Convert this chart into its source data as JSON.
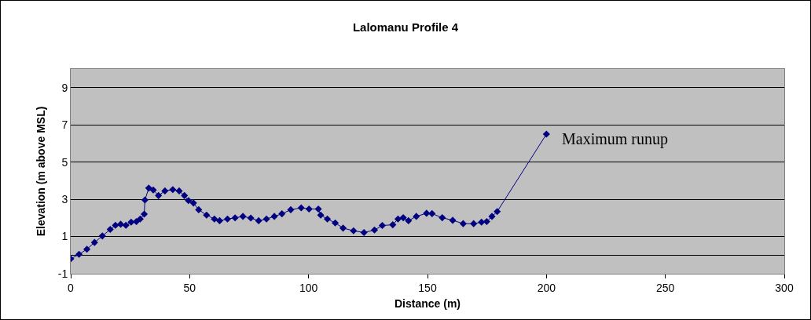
{
  "chart_data": {
    "type": "line",
    "title": "Lalomanu Profile 4",
    "xlabel": "Distance (m)",
    "ylabel": "Elevation (m above MSL)",
    "annotations": [
      {
        "text": "Maximum runup",
        "x": 200,
        "y": 6.5
      }
    ],
    "xlim": [
      0,
      300
    ],
    "xticks": [
      0,
      50,
      100,
      150,
      200,
      250,
      300
    ],
    "ylim": [
      -1,
      10
    ],
    "yticks": [
      -1,
      1,
      3,
      5,
      7,
      9
    ],
    "grid": "y",
    "marker": "diamond",
    "line_style": "solid",
    "series": [
      {
        "color": "#000080",
        "x": [
          0,
          3.5,
          6.8,
          10,
          13.3,
          16.6,
          18.8,
          21,
          23.2,
          25.4,
          27.6,
          29.2,
          30.9,
          31.2,
          32.8,
          34.7,
          36.9,
          39.6,
          42.9,
          45.6,
          47.8,
          49.5,
          51.6,
          53.8,
          57.1,
          60.4,
          62.6,
          65.9,
          69.1,
          72.4,
          75.7,
          79,
          82.3,
          85.6,
          88.8,
          92.5,
          96.9,
          100.2,
          104.1,
          105.1,
          107.9,
          111.2,
          114.5,
          118.9,
          123.3,
          127.7,
          131,
          135.4,
          137.6,
          139.8,
          142,
          145.3,
          149.6,
          151.9,
          156.2,
          160.6,
          165,
          169.4,
          172.7,
          174.9,
          177.1,
          179.3,
          200
        ],
        "values": [
          -0.2,
          0.04,
          0.32,
          0.68,
          1.03,
          1.38,
          1.6,
          1.66,
          1.6,
          1.77,
          1.8,
          1.94,
          2.2,
          2.96,
          3.6,
          3.5,
          3.2,
          3.45,
          3.52,
          3.45,
          3.2,
          2.93,
          2.8,
          2.44,
          2.15,
          1.94,
          1.85,
          1.94,
          2.0,
          2.08,
          1.99,
          1.85,
          1.94,
          2.08,
          2.22,
          2.44,
          2.54,
          2.48,
          2.48,
          2.15,
          1.94,
          1.73,
          1.45,
          1.31,
          1.21,
          1.35,
          1.59,
          1.63,
          1.94,
          2.01,
          1.85,
          2.08,
          2.25,
          2.23,
          2.01,
          1.87,
          1.69,
          1.69,
          1.77,
          1.8,
          2.08,
          2.34,
          6.5
        ]
      }
    ]
  }
}
